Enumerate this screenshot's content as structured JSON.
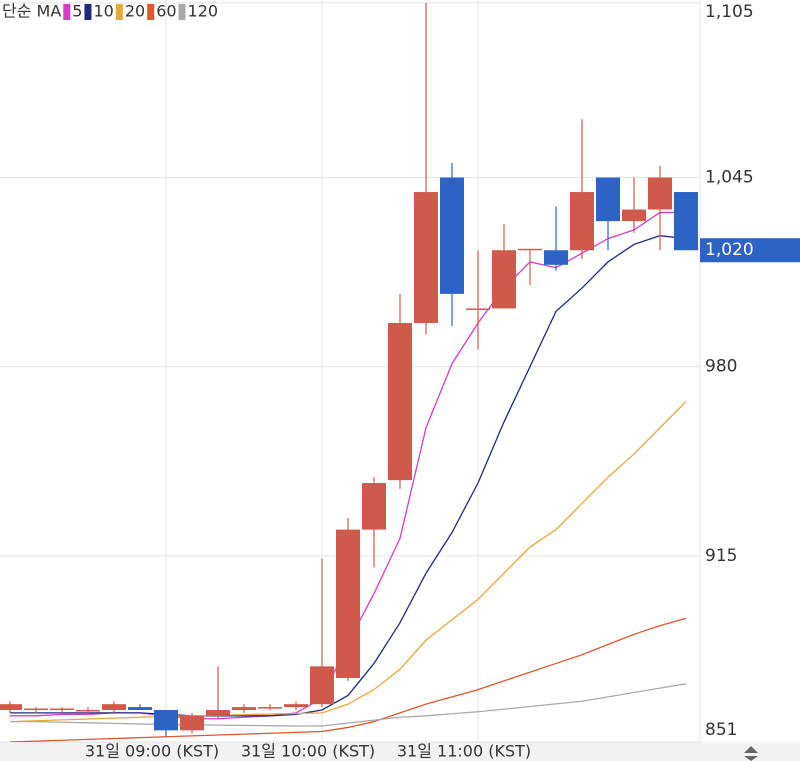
{
  "chart_data": {
    "type": "candlestick",
    "legend_title": "단순 MA",
    "categories": [
      null,
      null,
      null,
      null,
      null,
      null,
      "31일 09:00 (KST)",
      null,
      null,
      null,
      null,
      null,
      "31일 10:00 (KST)",
      null,
      null,
      null,
      null,
      null,
      "31일 11:00 (KST)",
      null,
      null,
      null,
      null,
      null,
      null,
      null,
      null
    ],
    "open": [
      862,
      862,
      862,
      862,
      862,
      863,
      862,
      855,
      860,
      862,
      863,
      863,
      864,
      873,
      924,
      941,
      995,
      1045,
      1000,
      1000,
      1020,
      1020,
      1020,
      1045,
      1030,
      1034,
      1040
    ],
    "high": [
      865,
      863,
      863,
      863,
      865,
      864,
      862,
      861,
      877,
      864,
      864,
      865,
      914,
      928,
      942,
      1005,
      1105,
      1050,
      1020,
      1029,
      1020,
      1035,
      1065,
      1045,
      1045,
      1049,
      1040
    ],
    "low": [
      861,
      861,
      861,
      861,
      861,
      862,
      853,
      854,
      859,
      861,
      862,
      862,
      863,
      872,
      911,
      938,
      991,
      994,
      986,
      1000,
      1008,
      1013,
      1017,
      1020,
      1026,
      1020,
      1020
    ],
    "close": [
      864,
      862.5,
      862.5,
      862,
      864,
      862,
      855,
      860,
      862,
      863,
      863,
      864,
      877,
      924,
      940,
      995,
      1040,
      1005,
      1000,
      1020,
      1020.5,
      1015,
      1040,
      1030,
      1034,
      1045,
      1020
    ],
    "up_color": "#cf5a4b",
    "down_color": "#2d63c4",
    "series": [
      {
        "name": "5",
        "color": "#d63cc8",
        "values": [
          860,
          860,
          860.5,
          860.5,
          861,
          861,
          860,
          859,
          859,
          859.5,
          860,
          861,
          866,
          885,
          902,
          921,
          959,
          981,
          995,
          1007,
          1016,
          1014,
          1019,
          1024,
          1027,
          1033,
          1033
        ]
      },
      {
        "name": "10",
        "color": "#1f2a80",
        "values": [
          861,
          861,
          861,
          861,
          861,
          861,
          860.5,
          860,
          860,
          860,
          860,
          860.5,
          862,
          867,
          878,
          892,
          909,
          923,
          940,
          961,
          980,
          999,
          1007,
          1016,
          1022,
          1025,
          1024
        ]
      },
      {
        "name": "20",
        "color": "#e6a83a",
        "values": [
          858,
          858.3,
          858.6,
          858.9,
          859.2,
          859.5,
          859.8,
          860,
          860.2,
          860.4,
          860.6,
          860.8,
          861,
          864,
          869,
          876,
          886,
          893,
          900,
          909,
          918,
          924,
          933,
          942,
          950,
          959,
          968
        ]
      },
      {
        "name": "60",
        "color": "#df552c",
        "values": [
          851,
          851.3,
          851.6,
          851.9,
          852.2,
          852.5,
          852.8,
          853.1,
          853.4,
          853.7,
          854,
          854.3,
          854.6,
          856,
          858,
          861,
          864,
          866.5,
          869,
          872,
          875,
          878,
          881,
          884.5,
          888,
          891,
          893.5
        ]
      },
      {
        "name": "120",
        "color": "#a9a9a9",
        "values": [
          858,
          858,
          857.8,
          857.6,
          857.4,
          857.2,
          857,
          857,
          856.8,
          856.7,
          856.6,
          856.5,
          856.5,
          857.5,
          858.5,
          859.5,
          860,
          860.7,
          861.4,
          862.3,
          863.2,
          864.1,
          865,
          866.5,
          868,
          869.5,
          871
        ]
      }
    ],
    "ylim": [
      851,
      1106
    ],
    "yticks": [
      {
        "value": 851,
        "label": "851"
      },
      {
        "value": 915,
        "label": "915"
      },
      {
        "value": 980,
        "label": "980"
      },
      {
        "value": 1045,
        "label": "1,045"
      },
      {
        "value": 1105,
        "label": "1,105"
      }
    ],
    "last_price": {
      "value": 1020,
      "label": "1,020"
    },
    "grid": true
  }
}
